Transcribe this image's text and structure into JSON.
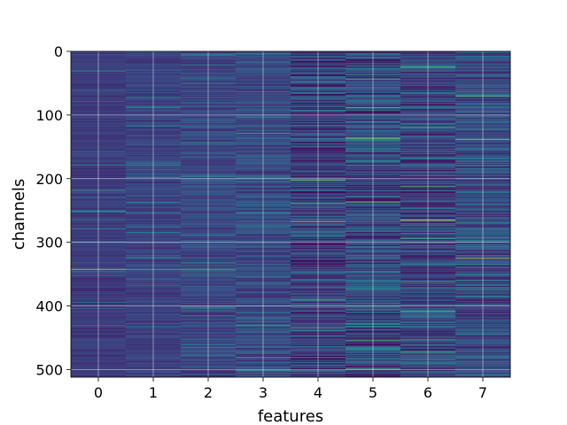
{
  "chart_data": {
    "type": "heatmap",
    "title": "",
    "xlabel": "features",
    "ylabel": "channels",
    "x_categories": [
      0,
      1,
      2,
      3,
      4,
      5,
      6,
      7
    ],
    "x_tick_labels": [
      "0",
      "1",
      "2",
      "3",
      "4",
      "5",
      "6",
      "7"
    ],
    "y_ticks": [
      0,
      100,
      200,
      300,
      400,
      500
    ],
    "y_tick_labels": [
      "0",
      "100",
      "200",
      "300",
      "400",
      "500"
    ],
    "ylim": [
      512,
      0
    ],
    "n_channels": 512,
    "n_features": 8,
    "grid": true,
    "colormap": "viridis",
    "colormap_stops": [
      "#440154",
      "#3b528b",
      "#21918c",
      "#5ec962",
      "#fde725"
    ],
    "base_level_by_feature": [
      0.18,
      0.2,
      0.22,
      0.24,
      0.2,
      0.24,
      0.22,
      0.24
    ],
    "variance_by_feature": [
      0.06,
      0.07,
      0.1,
      0.12,
      0.2,
      0.22,
      0.2,
      0.18
    ],
    "highlight_rows": [
      {
        "feature": 0,
        "channel": 342,
        "value": 0.9
      },
      {
        "feature": 1,
        "channel": 342,
        "value": 0.75
      },
      {
        "feature": 2,
        "channel": 342,
        "value": 0.7
      },
      {
        "feature": 0,
        "channel": 218,
        "value": 0.6
      },
      {
        "feature": 0,
        "channel": 178,
        "value": 0.55
      },
      {
        "feature": 1,
        "channel": 178,
        "value": 0.55
      },
      {
        "feature": 4,
        "channel": 267,
        "value": 0.95
      },
      {
        "feature": 6,
        "channel": 265,
        "value": 0.95
      },
      {
        "feature": 5,
        "channel": 236,
        "value": 0.85
      },
      {
        "feature": 5,
        "channel": 136,
        "value": 0.85
      },
      {
        "feature": 7,
        "channel": 138,
        "value": 0.8
      },
      {
        "feature": 7,
        "channel": 325,
        "value": 0.9
      },
      {
        "feature": 7,
        "channel": 70,
        "value": 0.75
      },
      {
        "feature": 5,
        "channel": 88,
        "value": 0.7
      },
      {
        "feature": 4,
        "channel": 202,
        "value": 0.75
      },
      {
        "feature": 6,
        "channel": 212,
        "value": 0.7
      },
      {
        "feature": 3,
        "channel": 128,
        "value": 0.65
      },
      {
        "feature": 3,
        "channel": 480,
        "value": 0.7
      },
      {
        "feature": 6,
        "channel": 408,
        "value": 0.7
      },
      {
        "feature": 4,
        "channel": 390,
        "value": 0.65
      }
    ]
  }
}
